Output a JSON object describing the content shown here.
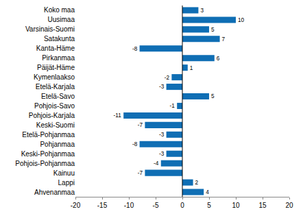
{
  "chart_data": {
    "type": "bar",
    "orientation": "horizontal",
    "categories": [
      "Koko maa",
      "Uusimaa",
      "Varsinais-Suomi",
      "Satakunta",
      "Kanta-Häme",
      "Pirkanmaa",
      "Päijät-Häme",
      "Kymenlaakso",
      "Etelä-Karjala",
      "Etelä-Savo",
      "Pohjois-Savo",
      "Pohjois-Karjala",
      "Keski-Suomi",
      "Etelä-Pohjanmaa",
      "Pohjanmaa",
      "Keski-Pohjanmaa",
      "Pohjois-Pohjanmaa",
      "Kainuu",
      "Lappi",
      "Ahvenanmaa"
    ],
    "values": [
      3,
      10,
      5,
      7,
      -8,
      6,
      1,
      -2,
      -3,
      5,
      -1,
      -11,
      -7,
      -3,
      -8,
      -3,
      -4,
      -7,
      2,
      4
    ],
    "color": "#0f6eb4",
    "xlim": [
      -20,
      20
    ],
    "xticks": [
      -20,
      -15,
      -10,
      -5,
      0,
      5,
      10,
      15,
      20
    ],
    "grid": false,
    "data_labels": true
  }
}
